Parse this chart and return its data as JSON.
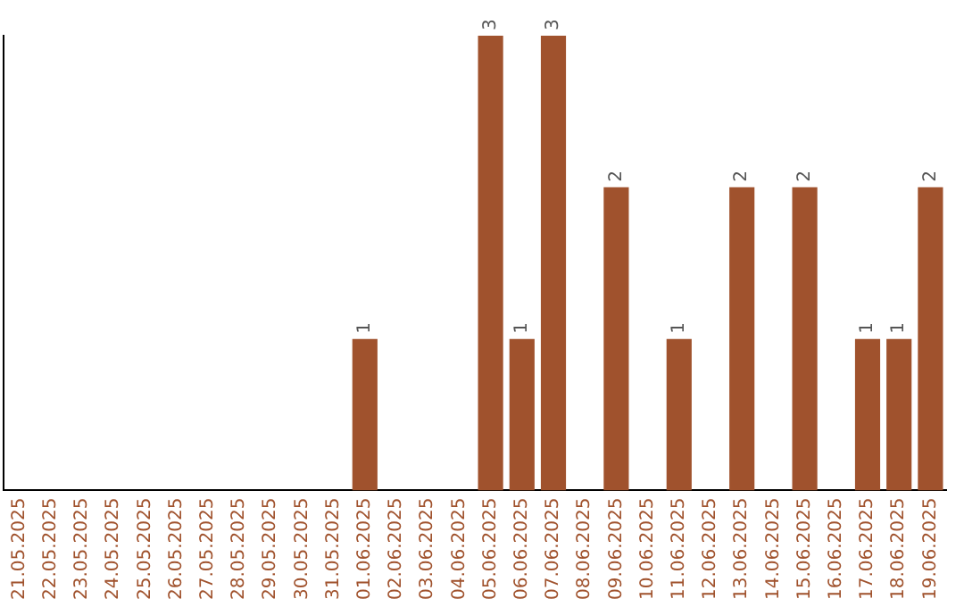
{
  "chart_data": {
    "type": "bar",
    "categories": [
      "21.05.2025",
      "22.05.2025",
      "23.05.2025",
      "24.05.2025",
      "25.05.2025",
      "26.05.2025",
      "27.05.2025",
      "28.05.2025",
      "29.05.2025",
      "30.05.2025",
      "31.05.2025",
      "01.06.2025",
      "02.06.2025",
      "03.06.2025",
      "04.06.2025",
      "05.06.2025",
      "06.06.2025",
      "07.06.2025",
      "08.06.2025",
      "09.06.2025",
      "10.06.2025",
      "11.06.2025",
      "12.06.2025",
      "13.06.2025",
      "14.06.2025",
      "15.06.2025",
      "16.06.2025",
      "17.06.2025",
      "18.06.2025",
      "19.06.2025"
    ],
    "values": [
      0,
      0,
      0,
      0,
      0,
      0,
      0,
      0,
      0,
      0,
      0,
      1,
      0,
      0,
      0,
      3,
      1,
      3,
      0,
      2,
      0,
      1,
      0,
      2,
      0,
      2,
      0,
      1,
      1,
      2
    ],
    "value_labels": [
      null,
      null,
      null,
      null,
      null,
      null,
      null,
      null,
      null,
      null,
      null,
      "1",
      null,
      null,
      null,
      "3",
      "1",
      "3",
      null,
      "2",
      null,
      "1",
      null,
      "2",
      null,
      "2",
      null,
      "1",
      "1",
      "2"
    ],
    "color": "#a0522d",
    "ylim": [
      0,
      3
    ],
    "grid": false,
    "legend": false,
    "tick_labels": "x"
  }
}
